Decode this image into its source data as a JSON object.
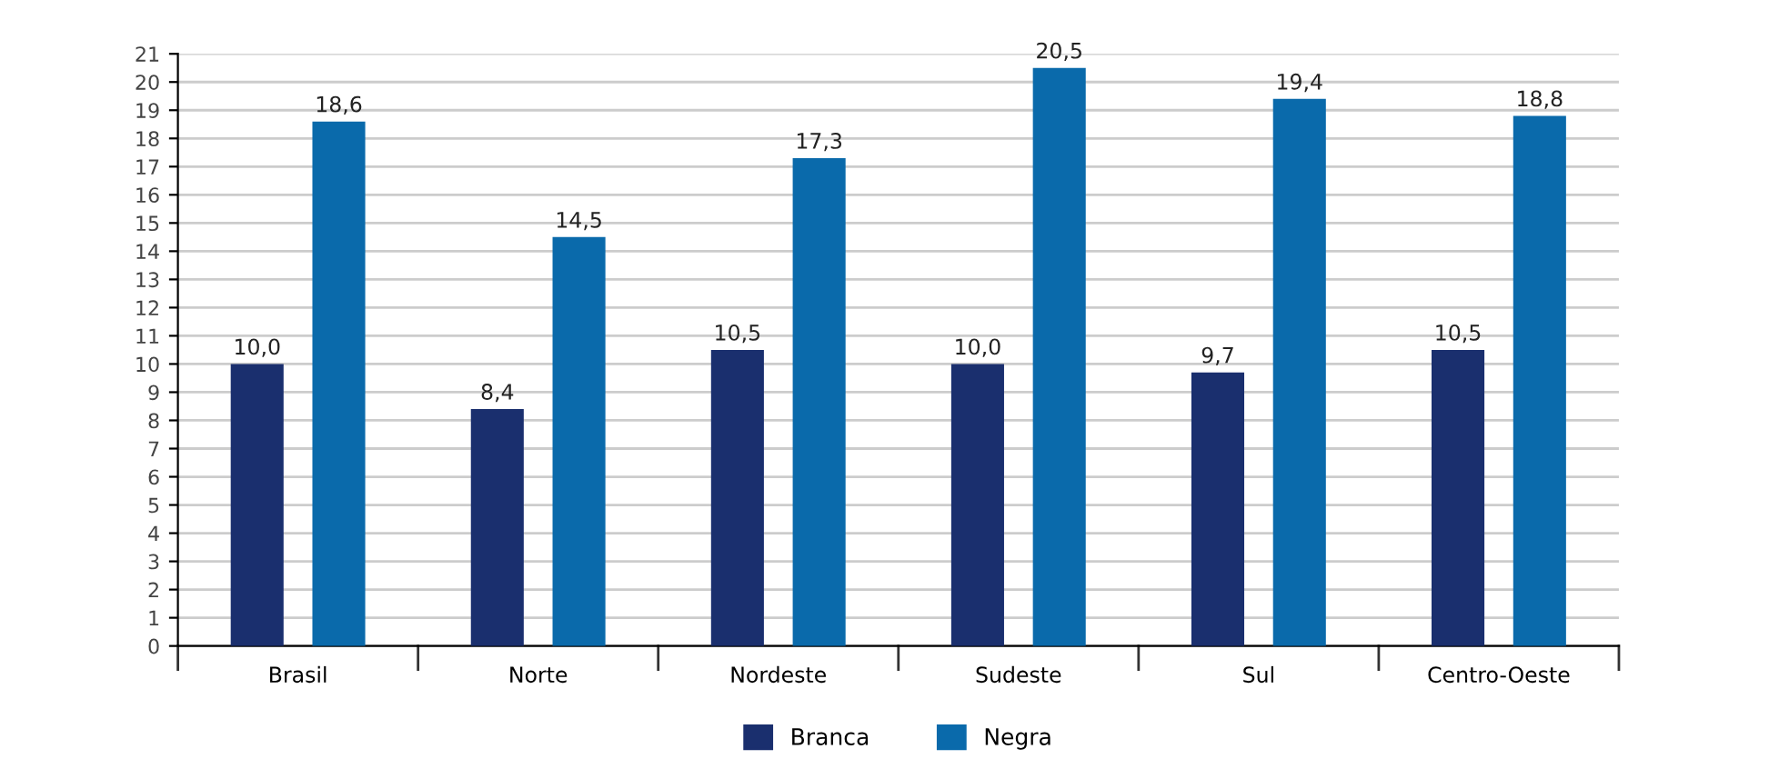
{
  "chart_data": {
    "type": "bar",
    "categories": [
      "Brasil",
      "Norte",
      "Nordeste",
      "Sudeste",
      "Sul",
      "Centro-Oeste"
    ],
    "series": [
      {
        "name": "Branca",
        "color": "#1a2f6e",
        "values": [
          10.0,
          8.4,
          10.5,
          10.0,
          9.7,
          10.5
        ],
        "value_labels": [
          "10,0",
          "8,4",
          "10,5",
          "10,0",
          "9,7",
          "10,5"
        ]
      },
      {
        "name": "Negra",
        "color": "#0a6aab",
        "values": [
          18.6,
          14.5,
          17.3,
          20.5,
          19.4,
          18.8
        ],
        "value_labels": [
          "18,6",
          "14,5",
          "17,3",
          "20,5",
          "19,4",
          "18,8"
        ]
      }
    ],
    "ylim": [
      0,
      21
    ],
    "yticks": [
      0,
      1,
      2,
      3,
      4,
      5,
      6,
      7,
      8,
      9,
      10,
      11,
      12,
      13,
      14,
      15,
      16,
      17,
      18,
      19,
      20,
      21
    ],
    "grid": "y",
    "legend": "bottom"
  }
}
